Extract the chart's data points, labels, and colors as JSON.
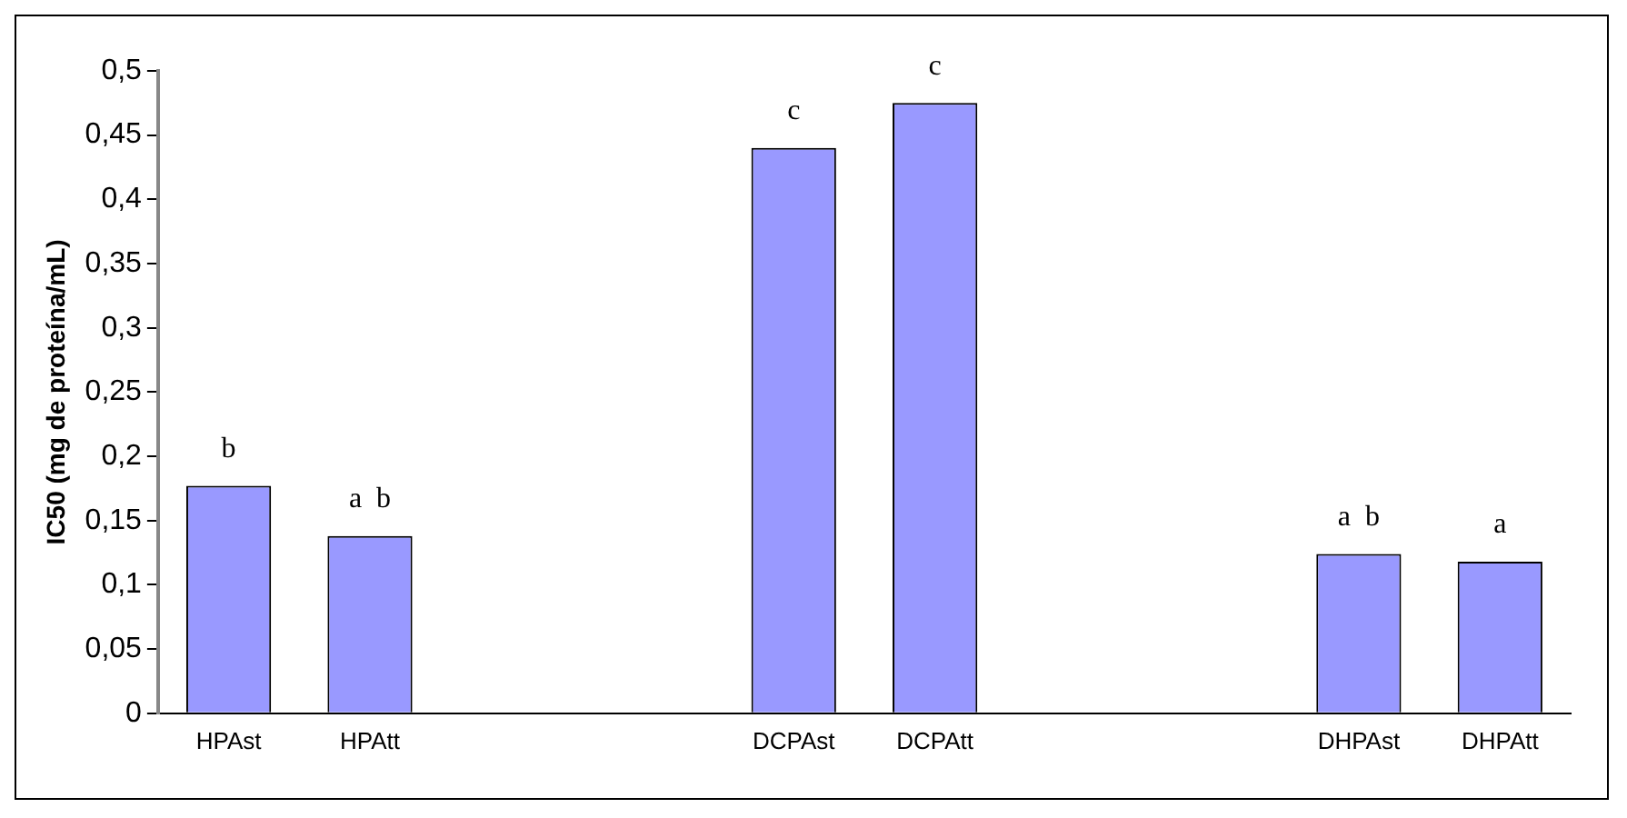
{
  "chart_data": {
    "type": "bar",
    "ylabel": "IC50 (mg de proteína/mL)",
    "categories": [
      "HPAst",
      "HPAtt",
      null,
      null,
      "DCPAst",
      "DCPAtt",
      null,
      null,
      "DHPAst",
      "DHPAtt"
    ],
    "values": [
      0.177,
      0.138,
      null,
      null,
      0.44,
      0.475,
      null,
      null,
      0.124,
      0.118
    ],
    "color": "#9999ff",
    "ylim": [
      0,
      0.5
    ],
    "yticks": [
      "0",
      {
        "value": 0.05,
        "label": "0,05"
      },
      {
        "value": 0.1,
        "label": "0,1"
      },
      {
        "value": 0.15,
        "label": "0,15"
      },
      {
        "value": 0.2,
        "label": "0,2"
      },
      {
        "value": 0.25,
        "label": "0,25"
      },
      {
        "value": 0.3,
        "label": "0,3"
      },
      {
        "value": 0.35,
        "label": "0,35"
      },
      {
        "value": 0.4,
        "label": "0,4"
      },
      {
        "value": 0.45,
        "label": "0,45"
      },
      {
        "value": 0.5,
        "label": "0,5"
      }
    ],
    "annotations": [
      {
        "text": "b",
        "x": "HPAst",
        "y": 0.177
      },
      {
        "text": "a  b",
        "x": "HPAtt",
        "y": 0.138
      },
      {
        "text": "c",
        "x": "DCPAst",
        "y": 0.44
      },
      {
        "text": "c",
        "x": "DCPAtt",
        "y": 0.475
      },
      {
        "text": "a  b",
        "x": "DHPAst",
        "y": 0.124
      },
      {
        "text": "a",
        "x": "DHPAtt",
        "y": 0.118
      }
    ],
    "grid": false,
    "legend": false
  }
}
